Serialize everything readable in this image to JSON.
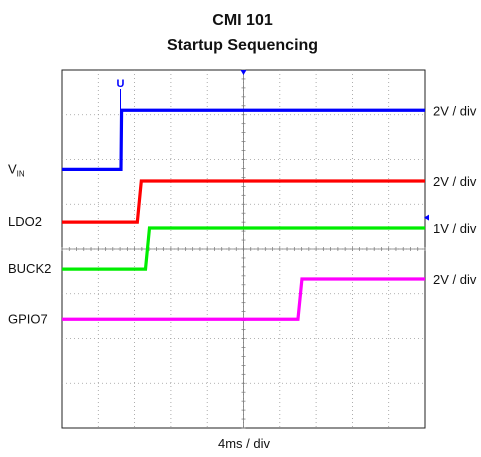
{
  "title_line1": "CMI 101",
  "title_line2": "Startup Sequencing",
  "chart_data": {
    "type": "line",
    "title": "CMI 101 Startup Sequencing",
    "time_scale": "4ms / div",
    "x_unit": "ms",
    "x_range": [
      0,
      40
    ],
    "divisions": {
      "x": 10,
      "y": 8
    },
    "grid": true,
    "markers": {
      "trigger_marker": "U"
    },
    "channels": [
      {
        "label_main": "V",
        "label_sub": "IN",
        "color": "#0000ff",
        "scale": "2V / div",
        "step_time_ms": 6.5,
        "low_div": 5.78,
        "high_div": 7.1
      },
      {
        "label_main": "LDO2",
        "label_sub": "",
        "color": "#ff0000",
        "scale": "2V / div",
        "step_time_ms": 8.3,
        "low_div": 4.6,
        "high_div": 5.52
      },
      {
        "label_main": "BUCK2",
        "label_sub": "",
        "color": "#00ee00",
        "scale": "1V / div",
        "step_time_ms": 9.2,
        "low_div": 3.55,
        "high_div": 4.47
      },
      {
        "label_main": "GPIO7",
        "label_sub": "",
        "color": "#ff00ff",
        "scale": "2V / div",
        "step_time_ms": 26.0,
        "low_div": 2.43,
        "high_div": 3.33
      }
    ]
  }
}
